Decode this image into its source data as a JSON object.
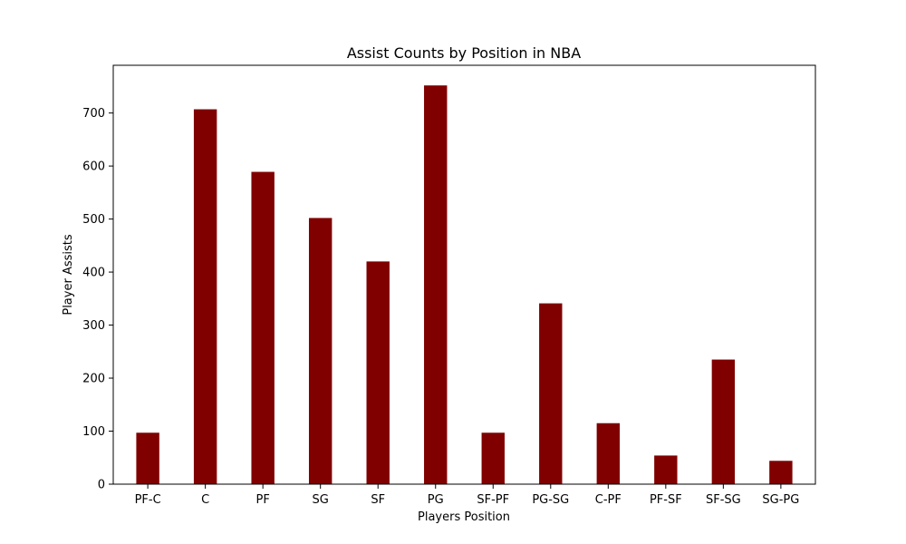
{
  "chart_data": {
    "type": "bar",
    "title": "Assist Counts by Position in NBA",
    "xlabel": "Players Position",
    "ylabel": "Player Assists",
    "categories": [
      "PF-C",
      "C",
      "PF",
      "SG",
      "SF",
      "PG",
      "SF-PF",
      "PG-SG",
      "C-PF",
      "PF-SF",
      "SF-SG",
      "SG-PG"
    ],
    "values": [
      97,
      707,
      589,
      502,
      420,
      752,
      97,
      341,
      115,
      54,
      235,
      44
    ],
    "ylim": [
      0,
      790
    ],
    "yticks": [
      0,
      100,
      200,
      300,
      400,
      500,
      600,
      700
    ],
    "bar_color": "#800000",
    "grid": false,
    "legend": "none"
  }
}
